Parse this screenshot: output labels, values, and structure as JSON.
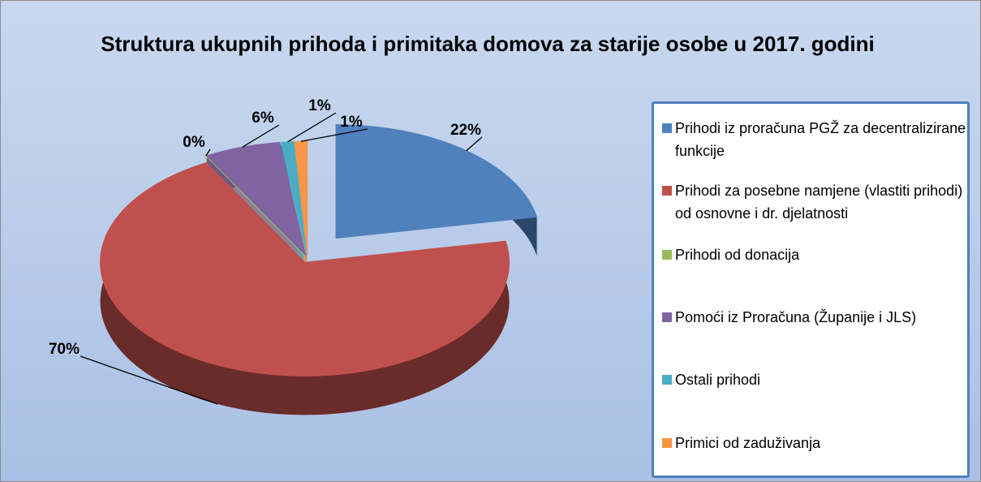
{
  "chart_data": {
    "type": "pie3d",
    "title": "Struktura ukupnih prihoda i primitaka domova za starije osobe u 2017. godini",
    "categories": [
      "Prihodi iz proračuna PGŽ za decentralizirane funkcije",
      "Prihodi za posebne namjene (vlastiti prihodi) od osnovne i dr. djelatnosti",
      "Prihodi od donacija",
      "Pomoći iz Proračuna (Županije i JLS)",
      "Ostali prihodi",
      "Primici od zaduživanja"
    ],
    "values": [
      22,
      70,
      0,
      6,
      1,
      1
    ],
    "value_labels": [
      "22%",
      "70%",
      "0%",
      "6%",
      "1%",
      "1%"
    ],
    "colors": [
      "#4f81bd",
      "#c0504d",
      "#9bbb59",
      "#8064a2",
      "#4bacc6",
      "#f79646"
    ],
    "legend": "right"
  }
}
